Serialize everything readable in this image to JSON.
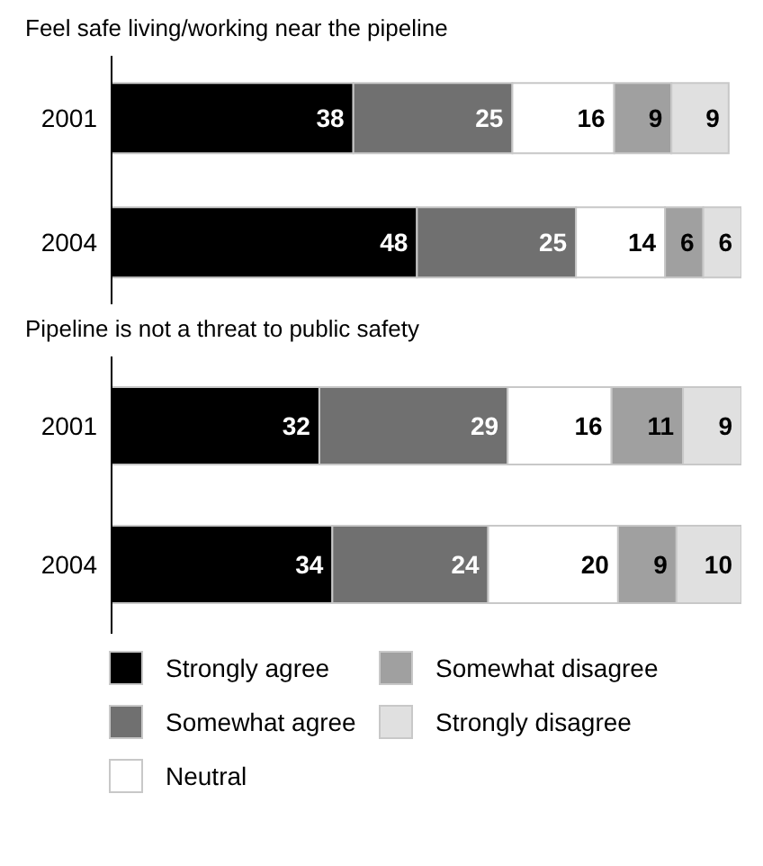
{
  "chart_data": [
    {
      "type": "bar",
      "title": "Feel safe living/working near the pipeline",
      "orientation": "horizontal",
      "stacked": true,
      "data_labels": true,
      "tick_labels": "y",
      "categories": [
        "2001",
        "2004"
      ],
      "series": [
        {
          "color": "#000000",
          "values": [
            38,
            48
          ]
        },
        {
          "color": "#707070",
          "values": [
            25,
            25
          ]
        },
        {
          "color": "#ffffff",
          "values": [
            16,
            14
          ]
        },
        {
          "color": "#a0a0a0",
          "values": [
            9,
            6
          ]
        },
        {
          "color": "#e0e0e0",
          "values": [
            9,
            6
          ]
        }
      ]
    },
    {
      "type": "bar",
      "title": "Pipeline is not a threat to public safety",
      "orientation": "horizontal",
      "stacked": true,
      "data_labels": true,
      "tick_labels": "y",
      "legend": "bottom",
      "categories": [
        "2001",
        "2004"
      ],
      "series": [
        {
          "name": "Strongly agree",
          "color": "#000000",
          "values": [
            32,
            34
          ]
        },
        {
          "name": "Somewhat agree",
          "color": "#707070",
          "values": [
            29,
            24
          ]
        },
        {
          "name": "Neutral",
          "color": "#ffffff",
          "values": [
            16,
            20
          ]
        },
        {
          "name": "Somewhat disagree",
          "color": "#a0a0a0",
          "values": [
            11,
            9
          ]
        },
        {
          "name": "Strongly disagree",
          "color": "#e0e0e0",
          "values": [
            9,
            10
          ]
        }
      ]
    }
  ]
}
